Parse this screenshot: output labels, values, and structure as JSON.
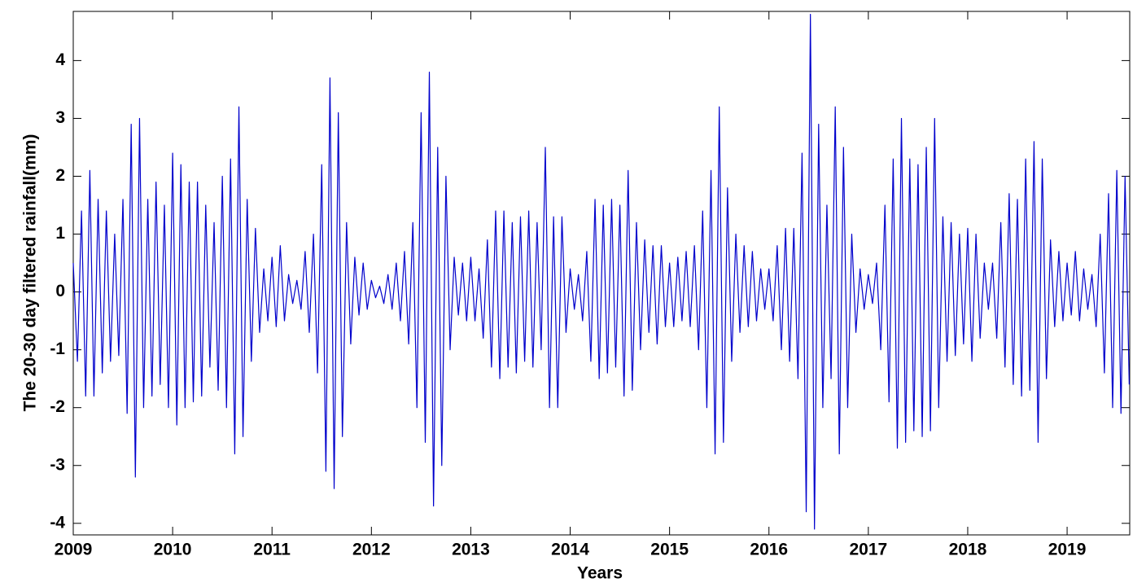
{
  "chart_data": {
    "type": "line",
    "x_label": "Years",
    "y_label": "The 20-30 day filtered rainfall(mm)",
    "xlim": [
      2009,
      2019.63
    ],
    "ylim": [
      -4.2,
      4.85
    ],
    "xticks": [
      2009,
      2010,
      2011,
      2012,
      2013,
      2014,
      2015,
      2016,
      2017,
      2018,
      2019
    ],
    "yticks": [
      -4,
      -3,
      -2,
      -1,
      0,
      1,
      2,
      3,
      4
    ],
    "x": [
      2009,
      2009.042,
      2009.083,
      2009.125,
      2009.167,
      2009.208,
      2009.25,
      2009.292,
      2009.333,
      2009.375,
      2009.417,
      2009.458,
      2009.5,
      2009.542,
      2009.583,
      2009.625,
      2009.667,
      2009.708,
      2009.75,
      2009.792,
      2009.833,
      2009.875,
      2009.917,
      2009.958,
      2010,
      2010.042,
      2010.083,
      2010.125,
      2010.167,
      2010.208,
      2010.25,
      2010.292,
      2010.333,
      2010.375,
      2010.417,
      2010.458,
      2010.5,
      2010.542,
      2010.583,
      2010.625,
      2010.667,
      2010.708,
      2010.75,
      2010.792,
      2010.833,
      2010.875,
      2010.917,
      2010.958,
      2011,
      2011.042,
      2011.083,
      2011.125,
      2011.167,
      2011.208,
      2011.25,
      2011.292,
      2011.333,
      2011.375,
      2011.417,
      2011.458,
      2011.5,
      2011.542,
      2011.583,
      2011.625,
      2011.667,
      2011.708,
      2011.75,
      2011.792,
      2011.833,
      2011.875,
      2011.917,
      2011.958,
      2012,
      2012.042,
      2012.083,
      2012.125,
      2012.167,
      2012.208,
      2012.25,
      2012.292,
      2012.333,
      2012.375,
      2012.417,
      2012.458,
      2012.5,
      2012.542,
      2012.583,
      2012.625,
      2012.667,
      2012.708,
      2012.75,
      2012.792,
      2012.833,
      2012.875,
      2012.917,
      2012.958,
      2013,
      2013.042,
      2013.083,
      2013.125,
      2013.167,
      2013.208,
      2013.25,
      2013.292,
      2013.333,
      2013.375,
      2013.417,
      2013.458,
      2013.5,
      2013.542,
      2013.583,
      2013.625,
      2013.667,
      2013.708,
      2013.75,
      2013.792,
      2013.833,
      2013.875,
      2013.917,
      2013.958,
      2014,
      2014.042,
      2014.083,
      2014.125,
      2014.167,
      2014.208,
      2014.25,
      2014.292,
      2014.333,
      2014.375,
      2014.417,
      2014.458,
      2014.5,
      2014.542,
      2014.583,
      2014.625,
      2014.667,
      2014.708,
      2014.75,
      2014.792,
      2014.833,
      2014.875,
      2014.917,
      2014.958,
      2015,
      2015.042,
      2015.083,
      2015.125,
      2015.167,
      2015.208,
      2015.25,
      2015.292,
      2015.333,
      2015.375,
      2015.417,
      2015.458,
      2015.5,
      2015.542,
      2015.583,
      2015.625,
      2015.667,
      2015.708,
      2015.75,
      2015.792,
      2015.833,
      2015.875,
      2015.917,
      2015.958,
      2016,
      2016.042,
      2016.083,
      2016.125,
      2016.167,
      2016.208,
      2016.25,
      2016.292,
      2016.333,
      2016.375,
      2016.417,
      2016.458,
      2016.5,
      2016.542,
      2016.583,
      2016.625,
      2016.667,
      2016.708,
      2016.75,
      2016.792,
      2016.833,
      2016.875,
      2016.917,
      2016.958,
      2017,
      2017.042,
      2017.083,
      2017.125,
      2017.167,
      2017.208,
      2017.25,
      2017.292,
      2017.333,
      2017.375,
      2017.417,
      2017.458,
      2017.5,
      2017.542,
      2017.583,
      2017.625,
      2017.667,
      2017.708,
      2017.75,
      2017.792,
      2017.833,
      2017.875,
      2017.917,
      2017.958,
      2018,
      2018.042,
      2018.083,
      2018.125,
      2018.167,
      2018.208,
      2018.25,
      2018.292,
      2018.333,
      2018.375,
      2018.417,
      2018.458,
      2018.5,
      2018.542,
      2018.583,
      2018.625,
      2018.667,
      2018.708,
      2018.75,
      2018.792,
      2018.833,
      2018.875,
      2018.917,
      2018.958,
      2019,
      2019.042,
      2019.083,
      2019.125,
      2019.167,
      2019.208,
      2019.25,
      2019.292,
      2019.333,
      2019.375,
      2019.417,
      2019.458,
      2019.5,
      2019.542,
      2019.583,
      2019.625
    ],
    "series": [
      {
        "color": "#0000cc",
        "values": [
          0.5,
          -1.2,
          1.4,
          -1.8,
          2.1,
          -1.8,
          1.6,
          -1.4,
          1.4,
          -1.2,
          1.0,
          -1.1,
          1.6,
          -2.1,
          2.9,
          -3.2,
          3.0,
          -2.0,
          1.6,
          -1.8,
          1.9,
          -1.6,
          1.5,
          -2.0,
          2.4,
          -2.3,
          2.2,
          -2.0,
          1.9,
          -1.9,
          1.9,
          -1.8,
          1.5,
          -1.3,
          1.2,
          -1.7,
          2.0,
          -2.0,
          2.3,
          -2.8,
          3.2,
          -2.5,
          1.6,
          -1.2,
          1.1,
          -0.7,
          0.4,
          -0.5,
          0.6,
          -0.6,
          0.8,
          -0.5,
          0.3,
          -0.2,
          0.2,
          -0.3,
          0.7,
          -0.7,
          1.0,
          -1.4,
          2.2,
          -3.1,
          3.7,
          -3.4,
          3.1,
          -2.5,
          1.2,
          -0.9,
          0.6,
          -0.4,
          0.5,
          -0.3,
          0.2,
          -0.1,
          0.1,
          -0.2,
          0.3,
          -0.3,
          0.5,
          -0.5,
          0.7,
          -0.9,
          1.2,
          -2.0,
          3.1,
          -2.6,
          3.8,
          -3.7,
          2.5,
          -3.0,
          2.0,
          -1.0,
          0.6,
          -0.4,
          0.5,
          -0.5,
          0.6,
          -0.5,
          0.4,
          -0.8,
          0.9,
          -1.3,
          1.4,
          -1.5,
          1.4,
          -1.3,
          1.2,
          -1.4,
          1.3,
          -1.2,
          1.4,
          -1.3,
          1.2,
          -1.0,
          2.5,
          -2.0,
          1.3,
          -2.0,
          1.3,
          -0.7,
          0.4,
          -0.3,
          0.3,
          -0.5,
          0.7,
          -1.2,
          1.6,
          -1.5,
          1.5,
          -1.4,
          1.6,
          -1.3,
          1.5,
          -1.8,
          2.1,
          -1.7,
          1.2,
          -1.0,
          0.9,
          -0.7,
          0.8,
          -0.9,
          0.8,
          -0.6,
          0.5,
          -0.6,
          0.6,
          -0.5,
          0.7,
          -0.6,
          0.8,
          -1.0,
          1.4,
          -2.0,
          2.1,
          -2.8,
          3.2,
          -2.6,
          1.8,
          -1.2,
          1.0,
          -0.7,
          0.8,
          -0.6,
          0.7,
          -0.5,
          0.4,
          -0.3,
          0.4,
          -0.5,
          0.8,
          -1.0,
          1.1,
          -1.2,
          1.1,
          -1.5,
          2.4,
          -3.8,
          4.8,
          -4.1,
          2.9,
          -2.0,
          1.5,
          -1.5,
          3.2,
          -2.8,
          2.5,
          -2.0,
          1.0,
          -0.7,
          0.4,
          -0.3,
          0.3,
          -0.2,
          0.5,
          -1.0,
          1.5,
          -1.9,
          2.3,
          -2.7,
          3.0,
          -2.6,
          2.3,
          -2.4,
          2.2,
          -2.5,
          2.5,
          -2.4,
          3.0,
          -2.0,
          1.3,
          -1.2,
          1.2,
          -1.1,
          1.0,
          -0.9,
          1.1,
          -1.2,
          1.0,
          -0.8,
          0.5,
          -0.3,
          0.5,
          -0.8,
          1.2,
          -1.3,
          1.7,
          -1.6,
          1.6,
          -1.8,
          2.3,
          -1.7,
          2.6,
          -2.6,
          2.3,
          -1.5,
          0.9,
          -0.6,
          0.7,
          -0.5,
          0.5,
          -0.4,
          0.7,
          -0.5,
          0.4,
          -0.3,
          0.3,
          -0.6,
          1.0,
          -1.4,
          1.7,
          -2.0,
          2.1,
          -2.1,
          2.0,
          -1.6
        ]
      }
    ]
  }
}
